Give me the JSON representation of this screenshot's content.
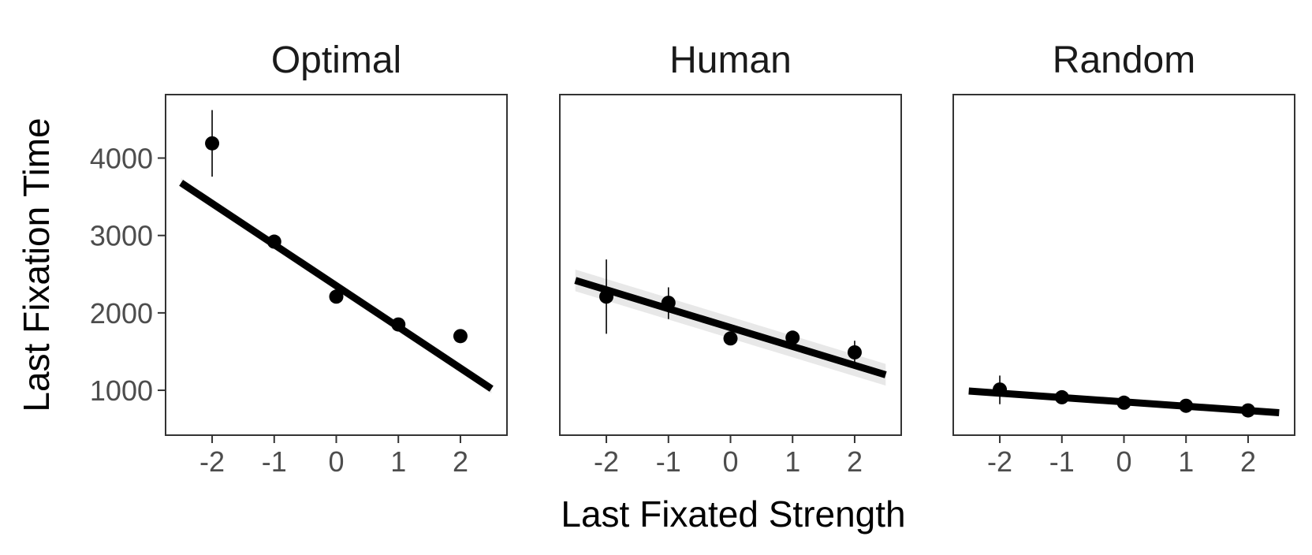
{
  "chart_data": {
    "type": "scatter",
    "xlabel": "Last Fixated Strength",
    "ylabel": "Last Fixation Time",
    "xlim": [
      -2.75,
      2.75
    ],
    "ylim": [
      420,
      4820
    ],
    "x_ticks": [
      "-2",
      "-1",
      "0",
      "1",
      "2"
    ],
    "y_ticks": [
      "1000",
      "2000",
      "3000",
      "4000"
    ],
    "grid": false,
    "legend": "none",
    "colors": {
      "points": "#000000",
      "fit_line": "#000000",
      "ribbon": "#d9d9d9",
      "frame": "#333333"
    },
    "panels": [
      {
        "title": "Optimal",
        "points": [
          {
            "x": -2,
            "y": 4190,
            "lo": 3760,
            "hi": 4620
          },
          {
            "x": -1,
            "y": 2920,
            "lo": 2890,
            "hi": 2950
          },
          {
            "x": 0,
            "y": 2210,
            "lo": 2180,
            "hi": 2240
          },
          {
            "x": 1,
            "y": 1850,
            "lo": 1820,
            "hi": 1880
          },
          {
            "x": 2,
            "y": 1700,
            "lo": 1680,
            "hi": 1720
          }
        ],
        "fit": {
          "x": [
            -2.5,
            2.5
          ],
          "y": [
            3680,
            1020
          ],
          "band": 60
        }
      },
      {
        "title": "Human",
        "points": [
          {
            "x": -2,
            "y": 2210,
            "lo": 1730,
            "hi": 2690
          },
          {
            "x": -1,
            "y": 2130,
            "lo": 1920,
            "hi": 2330
          },
          {
            "x": 0,
            "y": 1670,
            "lo": 1640,
            "hi": 1700
          },
          {
            "x": 1,
            "y": 1680,
            "lo": 1650,
            "hi": 1710
          },
          {
            "x": 2,
            "y": 1490,
            "lo": 1350,
            "hi": 1640
          }
        ],
        "fit": {
          "x": [
            -2.5,
            2.5
          ],
          "y": [
            2420,
            1200
          ],
          "band": 140
        }
      },
      {
        "title": "Random",
        "points": [
          {
            "x": -2,
            "y": 1010,
            "lo": 820,
            "hi": 1190
          },
          {
            "x": -1,
            "y": 910,
            "lo": 890,
            "hi": 930
          },
          {
            "x": 0,
            "y": 840,
            "lo": 820,
            "hi": 860
          },
          {
            "x": 1,
            "y": 800,
            "lo": 780,
            "hi": 820
          },
          {
            "x": 2,
            "y": 740,
            "lo": 720,
            "hi": 760
          }
        ],
        "fit": {
          "x": [
            -2.5,
            2.5
          ],
          "y": [
            990,
            710
          ],
          "band": 30
        }
      }
    ]
  }
}
